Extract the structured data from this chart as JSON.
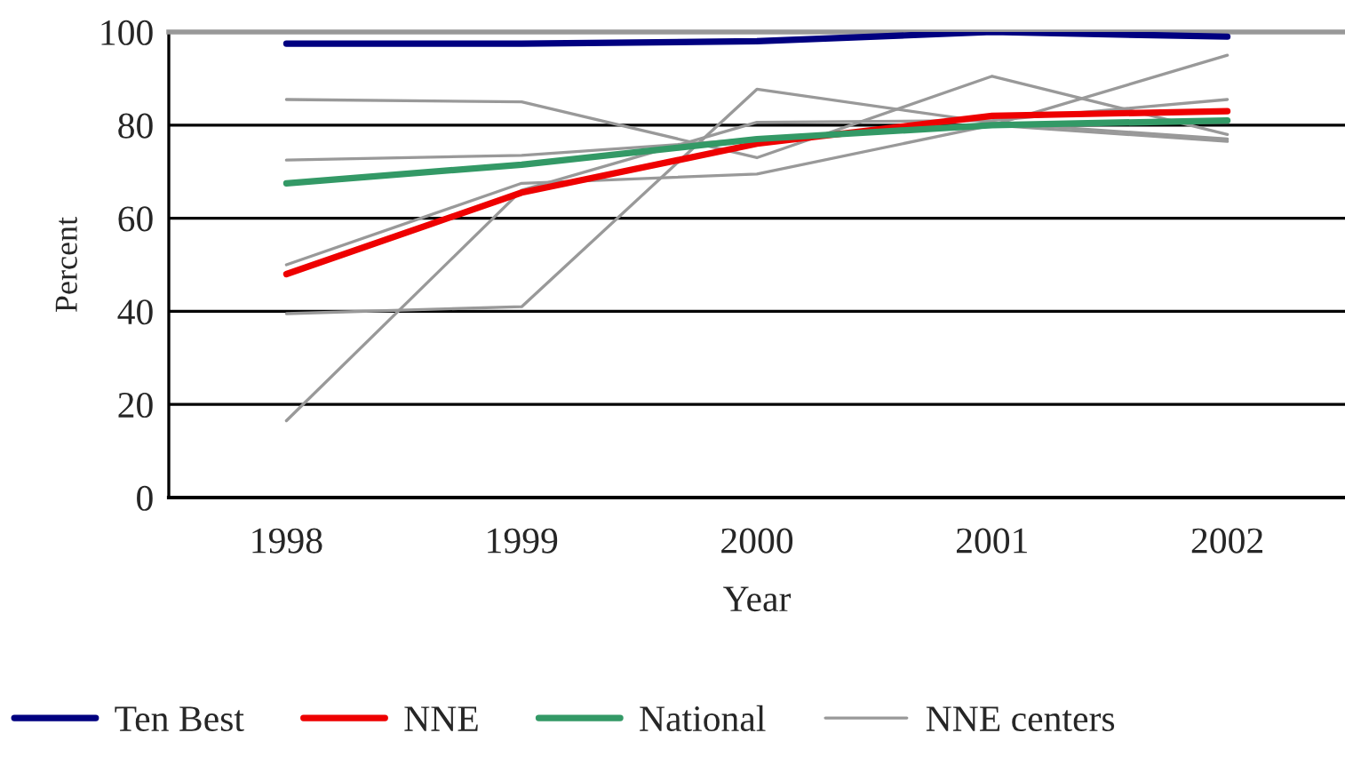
{
  "chart_data": {
    "type": "line",
    "xlabel": "Year",
    "ylabel": "Percent",
    "categories": [
      "1998",
      "1999",
      "2000",
      "2001",
      "2002"
    ],
    "ylim": [
      0,
      100
    ],
    "yticks": [
      0,
      20,
      40,
      60,
      80,
      100
    ],
    "grid": "y",
    "legend": "bottom",
    "marker": "none",
    "line_style": "solid",
    "series": [
      {
        "name": "NNE centers",
        "color": "#999999",
        "values": [
          85.5,
          85,
          73,
          90.5,
          78
        ]
      },
      {
        "color": "#999999",
        "values": [
          72.5,
          73.5,
          77,
          80,
          76.5
        ]
      },
      {
        "color": "#999999",
        "values": [
          50,
          67.5,
          69.5,
          80,
          95
        ]
      },
      {
        "color": "#999999",
        "values": [
          39.5,
          41,
          87.7,
          80.5,
          77
        ]
      },
      {
        "color": "#999999",
        "values": [
          16.5,
          66,
          80.6,
          81,
          85.5
        ]
      },
      {
        "name": "Ten Best",
        "color": "#000080",
        "values": [
          97.5,
          97.5,
          98,
          100,
          99
        ]
      },
      {
        "name": "NNE",
        "color": "#ee0000",
        "values": [
          48,
          65.5,
          76,
          82,
          83
        ]
      },
      {
        "name": "National",
        "color": "#339966",
        "values": [
          67.5,
          71.5,
          77,
          80,
          81
        ]
      }
    ]
  }
}
